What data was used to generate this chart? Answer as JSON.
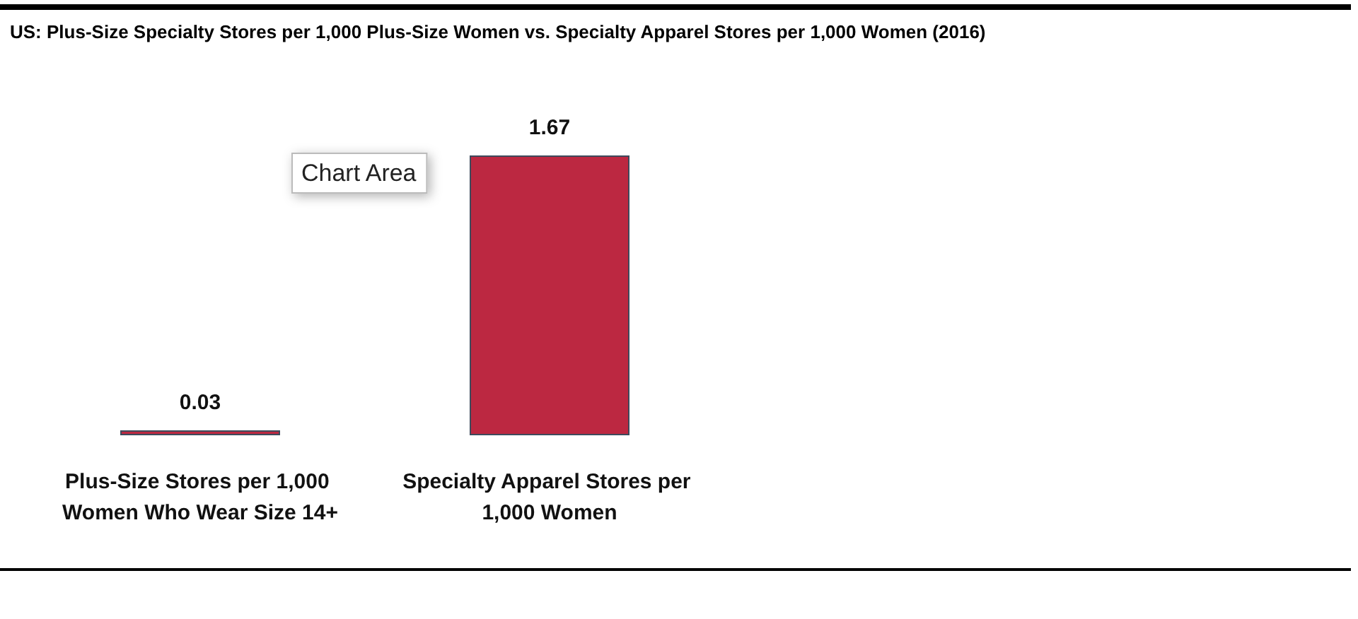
{
  "chart_data": {
    "type": "bar",
    "title": "US: Plus-Size Specialty Stores per 1,000 Plus-Size Women vs. Specialty Apparel Stores per 1,000 Women (2016)",
    "categories": [
      "Plus-Size Stores per 1,000 Women Who Wear Size 14+",
      "Specialty Apparel Stores per 1,000 Women"
    ],
    "values": [
      0.03,
      1.67
    ],
    "color": "#bc2841",
    "data_labels": true,
    "annotations": [
      "Chart Area"
    ]
  }
}
